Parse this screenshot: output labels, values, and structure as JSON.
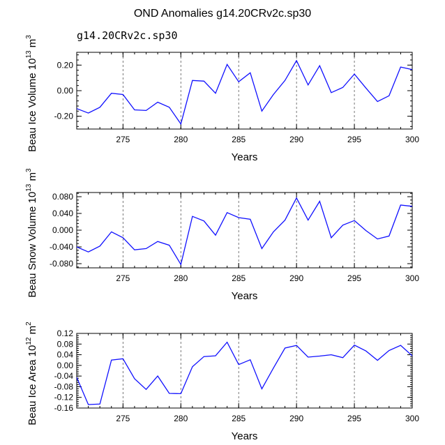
{
  "title": "OND Anomalies g14.20CRv2c.sp30",
  "subtitle": "g14.20CRv2c.sp30",
  "colors": {
    "line": "#1010ff",
    "subtitle": "#4040ff"
  },
  "chart_data": [
    {
      "type": "line",
      "name": "volume",
      "ylabel": "Beau Ice Volume 10",
      "ylabel_exp": "13",
      "ylabel_unit": " m",
      "ylabel_unit_exp": "3",
      "xlabel": "Years",
      "xlim": [
        271,
        300
      ],
      "ylim": [
        -0.3,
        0.3
      ],
      "xticks": [
        275,
        280,
        285,
        290,
        295,
        300
      ],
      "xtick_labels": [
        "275",
        "280",
        "285",
        "290",
        "295",
        "300"
      ],
      "yticks": [
        -0.2,
        0.0,
        0.2
      ],
      "ytick_labels": [
        "-0.20",
        "0.00",
        "0.20"
      ],
      "grid_x": [
        275,
        280,
        285,
        290,
        295
      ],
      "x": [
        271,
        272,
        273,
        274,
        275,
        276,
        277,
        278,
        279,
        280,
        281,
        282,
        283,
        284,
        285,
        286,
        287,
        288,
        289,
        290,
        291,
        292,
        293,
        294,
        295,
        296,
        297,
        298,
        299,
        300
      ],
      "values": [
        -0.14,
        -0.175,
        -0.13,
        -0.02,
        -0.03,
        -0.15,
        -0.155,
        -0.09,
        -0.13,
        -0.26,
        0.08,
        0.075,
        -0.02,
        0.205,
        0.07,
        0.14,
        -0.16,
        -0.03,
        0.08,
        0.235,
        0.045,
        0.195,
        -0.015,
        0.025,
        0.13,
        0.02,
        -0.085,
        -0.04,
        0.185,
        0.165
      ]
    },
    {
      "type": "line",
      "name": "snow",
      "ylabel": "Beau Snow Volume 10",
      "ylabel_exp": "13",
      "ylabel_unit": " m",
      "ylabel_unit_exp": "3",
      "xlabel": "Years",
      "xlim": [
        271,
        300
      ],
      "ylim": [
        -0.09,
        0.09
      ],
      "xticks": [
        275,
        280,
        285,
        290,
        295,
        300
      ],
      "xtick_labels": [
        "275",
        "280",
        "285",
        "290",
        "295",
        "300"
      ],
      "yticks": [
        -0.08,
        -0.04,
        0.0,
        0.04,
        0.08
      ],
      "ytick_labels": [
        "-0.080",
        "-0.040",
        "0.000",
        "0.040",
        "0.080"
      ],
      "grid_x": [
        275,
        280,
        285,
        290,
        295
      ],
      "x": [
        271,
        272,
        273,
        274,
        275,
        276,
        277,
        278,
        279,
        280,
        281,
        282,
        283,
        284,
        285,
        286,
        287,
        288,
        289,
        290,
        291,
        292,
        293,
        294,
        295,
        296,
        297,
        298,
        299,
        300
      ],
      "values": [
        -0.04,
        -0.052,
        -0.038,
        -0.004,
        -0.018,
        -0.047,
        -0.044,
        -0.027,
        -0.036,
        -0.082,
        0.033,
        0.022,
        -0.012,
        0.042,
        0.03,
        0.026,
        -0.044,
        -0.004,
        0.024,
        0.077,
        0.024,
        0.069,
        -0.018,
        0.012,
        0.023,
        -0.001,
        -0.021,
        -0.014,
        0.06,
        0.057
      ]
    },
    {
      "type": "line",
      "name": "area",
      "ylabel": "Beau Ice Area 10",
      "ylabel_exp": "12",
      "ylabel_unit": " m",
      "ylabel_unit_exp": "2",
      "xlabel": "Years",
      "xlim": [
        271,
        300
      ],
      "ylim": [
        -0.16,
        0.12
      ],
      "xticks": [
        275,
        280,
        285,
        290,
        295,
        300
      ],
      "xtick_labels": [
        "275",
        "280",
        "285",
        "290",
        "295",
        "300"
      ],
      "yticks": [
        -0.16,
        -0.12,
        -0.08,
        -0.04,
        0.0,
        0.04,
        0.08,
        0.12
      ],
      "ytick_labels": [
        "-0.16",
        "-0.12",
        "-0.08",
        "-0.04",
        "0.00",
        "0.04",
        "0.08",
        "0.12"
      ],
      "grid_x": [
        275,
        280,
        285,
        290,
        295
      ],
      "x": [
        271,
        272,
        273,
        274,
        275,
        276,
        277,
        278,
        279,
        280,
        281,
        282,
        283,
        284,
        285,
        286,
        287,
        288,
        289,
        290,
        291,
        292,
        293,
        294,
        295,
        296,
        297,
        298,
        299,
        300
      ],
      "values": [
        -0.045,
        -0.147,
        -0.145,
        0.02,
        0.025,
        -0.05,
        -0.09,
        -0.04,
        -0.105,
        -0.106,
        -0.005,
        0.033,
        0.036,
        0.087,
        0.003,
        0.021,
        -0.088,
        -0.01,
        0.065,
        0.075,
        0.031,
        0.035,
        0.04,
        0.029,
        0.076,
        0.054,
        0.019,
        0.056,
        0.075,
        0.036
      ]
    }
  ]
}
